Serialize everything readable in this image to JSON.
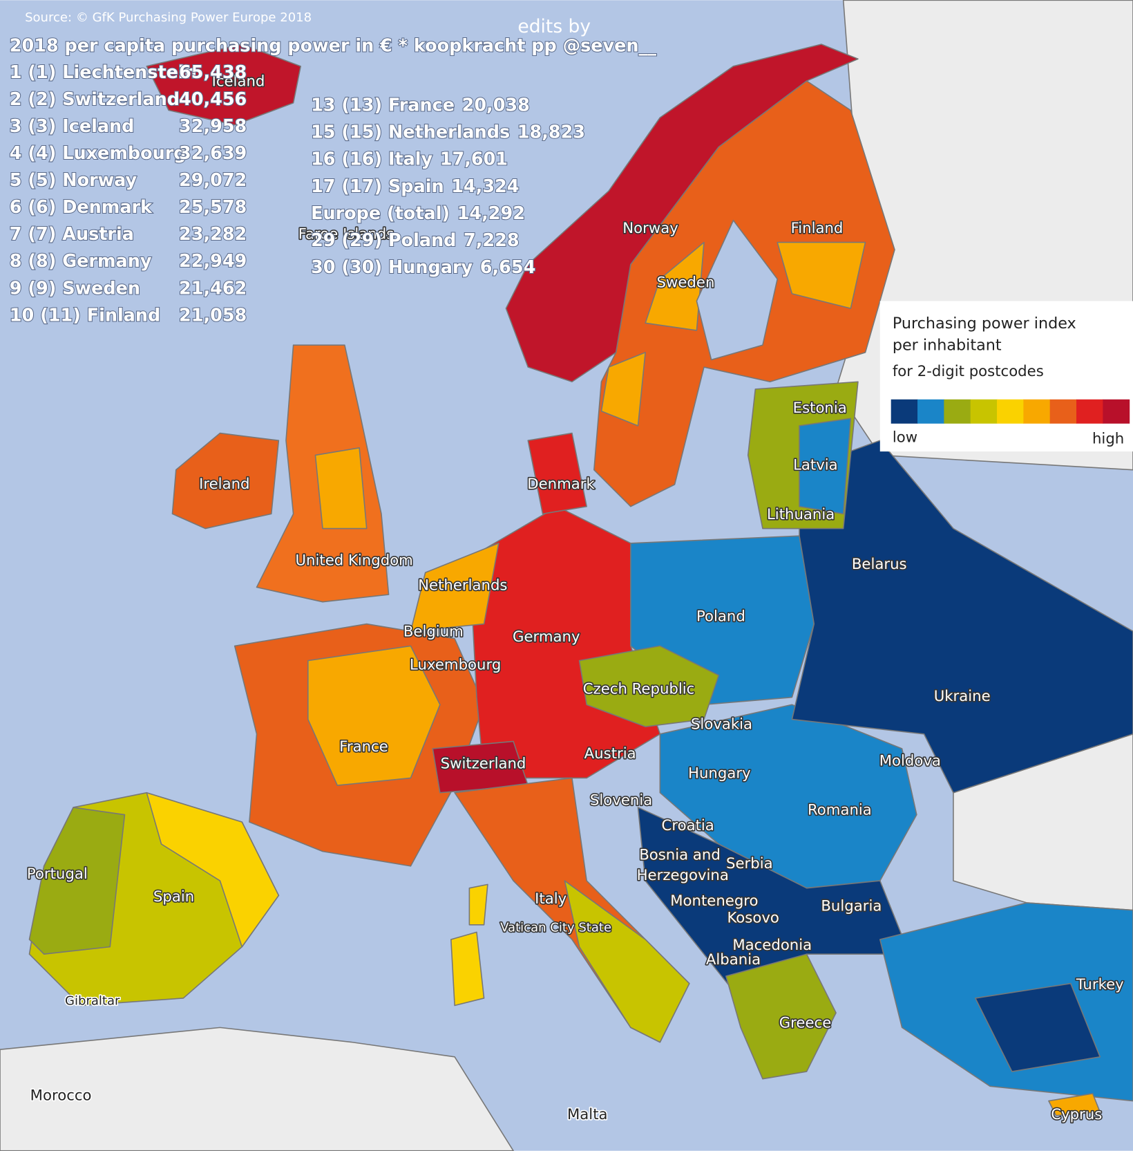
{
  "source": "Source: © GfK Purchasing Power Europe 2018",
  "edits_by": "edits by",
  "title": "2018 per capita purchasing power in €  * koopkracht pp @seven__",
  "ranking_left": [
    {
      "entry": "1 (1) Liechtenstein",
      "value": "65,438"
    },
    {
      "entry": "2 (2) Switzerland",
      "value": "40,456"
    },
    {
      "entry": "3 (3) Iceland",
      "value": "32,958"
    },
    {
      "entry": "4 (4) Luxembourg",
      "value": "32,639"
    },
    {
      "entry": "5 (5) Norway",
      "value": "29,072"
    },
    {
      "entry": "6 (6) Denmark",
      "value": "25,578"
    },
    {
      "entry": "7 (7) Austria",
      "value": "23,282"
    },
    {
      "entry": "8 (8) Germany",
      "value": "22,949"
    },
    {
      "entry": "9 (9) Sweden",
      "value": "21,462"
    },
    {
      "entry": "10 (11) Finland",
      "value": "21,058"
    }
  ],
  "ranking_right": [
    {
      "entry": "13 (13) France",
      "value": "20,038"
    },
    {
      "entry": "15 (15) Netherlands",
      "value": "18,823"
    },
    {
      "entry": "16 (16) Italy",
      "value": "17,601"
    },
    {
      "entry": "17 (17) Spain",
      "value": "14,324"
    },
    {
      "entry": "Europe (total)",
      "value": "14,292"
    },
    {
      "entry": "29 (29) Poland",
      "value": "7,228"
    },
    {
      "entry": "30 (30) Hungary",
      "value": "6,654"
    }
  ],
  "labels": [
    "Iceland",
    "Faroe Islands",
    "Norway",
    "Sweden",
    "Finland",
    "Estonia",
    "Latvia",
    "Lithuania",
    "Denmark",
    "Ireland",
    "United Kingdom",
    "Netherlands",
    "Belgium",
    "Germany",
    "Luxembourg",
    "Poland",
    "Belarus",
    "Czech Republic",
    "Slovakia",
    "Ukraine",
    "France",
    "Switzerland",
    "Austria",
    "Hungary",
    "Moldova",
    "Slovenia",
    "Romania",
    "Croatia",
    "Bosnia and",
    "Herzegovina",
    "Serbia",
    "Portugal",
    "Spain",
    "Italy",
    "Vatican City State",
    "Montenegro",
    "Kosovo",
    "Bulgaria",
    "Macedonia",
    "Albania",
    "Turkey",
    "Gibraltar",
    "Greece",
    "Morocco",
    "Malta",
    "Cyprus"
  ],
  "legend": {
    "title_lines": [
      "Purchasing power index",
      "per inhabitant"
    ],
    "subtitle": "for 2-digit postcodes",
    "low": "low",
    "high": "high",
    "colors": [
      "#0a3a7a",
      "#1a85c8",
      "#9aab12",
      "#c8c400",
      "#fad200",
      "#f8a800",
      "#e8601a",
      "#e02020",
      "#b8102a"
    ]
  }
}
